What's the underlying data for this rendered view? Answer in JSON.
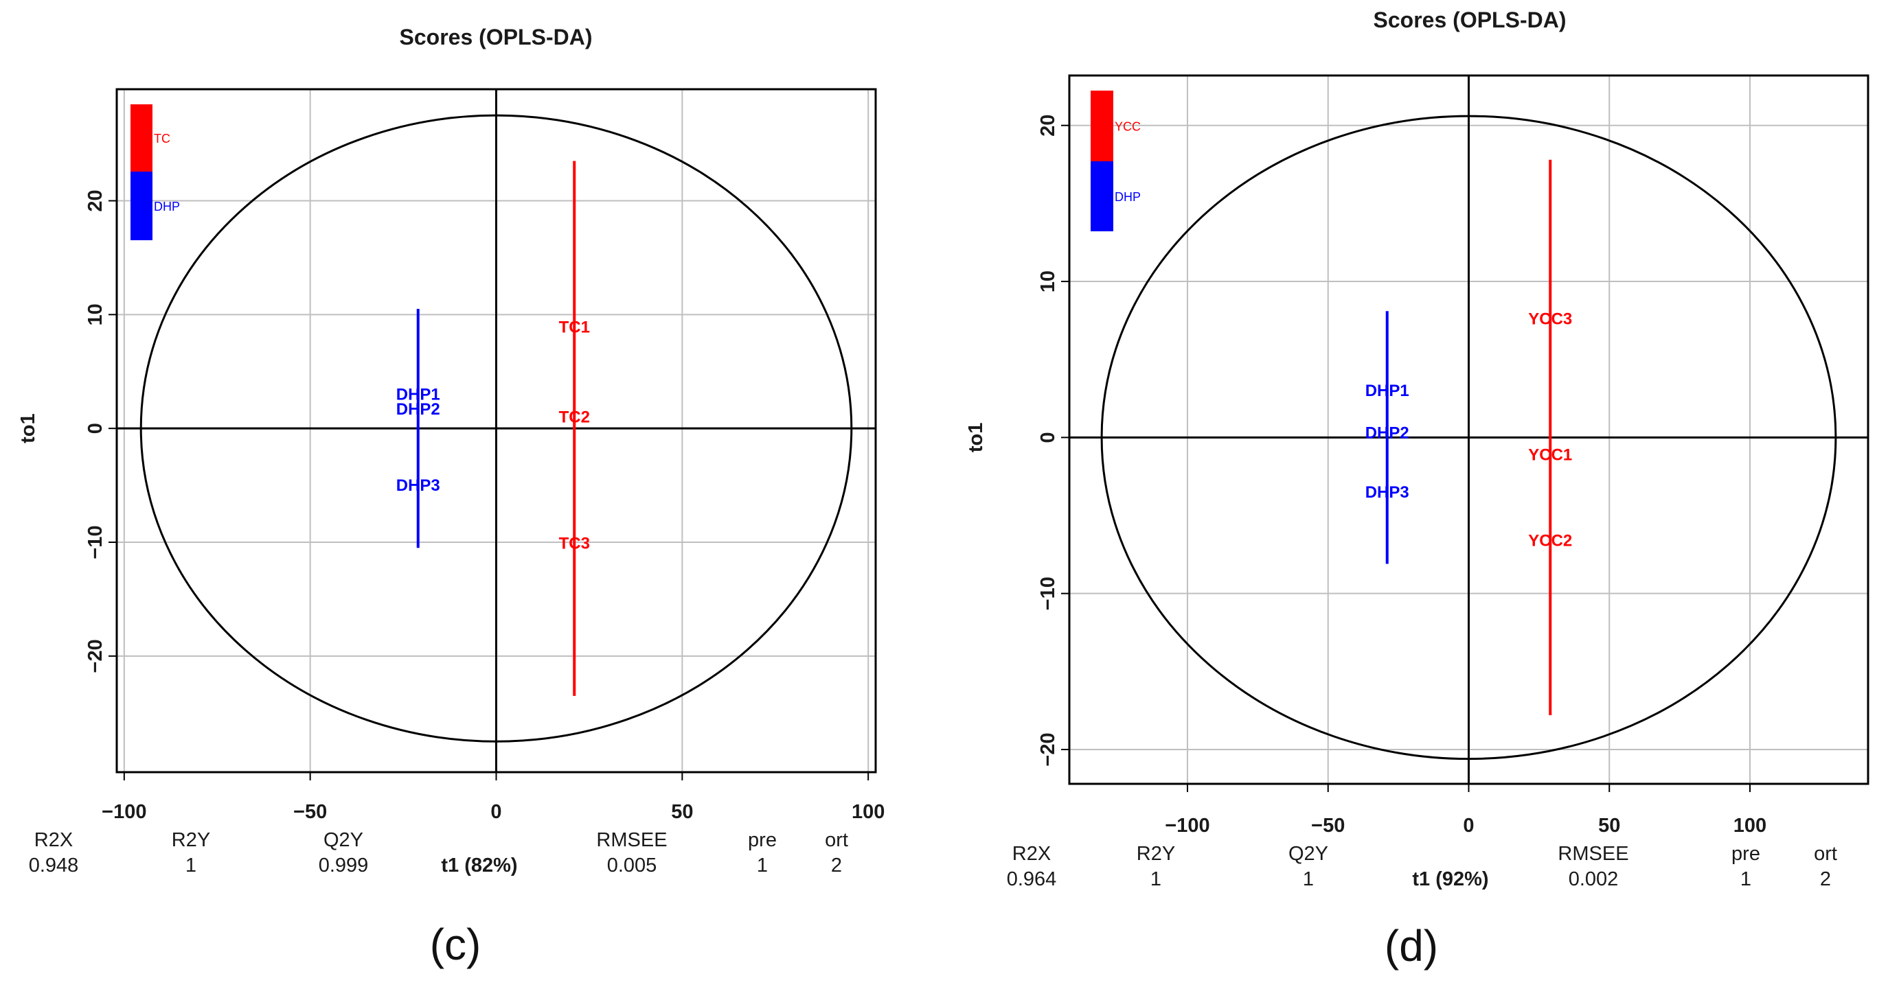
{
  "chart_data": [
    {
      "type": "scatter",
      "title": "Scores (OPLS-DA)",
      "xlabel": "t1 (82%)",
      "ylabel": "to1",
      "xlim": [
        -102,
        102
      ],
      "ylim": [
        -30.2,
        29.8
      ],
      "xticks": [
        -100,
        -50,
        0,
        50,
        100
      ],
      "xtick_labels": [
        "−100",
        "−50",
        "0",
        "50",
        "100"
      ],
      "yticks": [
        -20,
        -10,
        0,
        10,
        20
      ],
      "ytick_labels": [
        "−20",
        "−10",
        "0",
        "10",
        "20"
      ],
      "grid": true,
      "ellipse": {
        "rx": 95.5,
        "ry": 27.5
      },
      "legend": [
        {
          "label": "TC",
          "color": "#ff0000"
        },
        {
          "label": "DHP",
          "color": "#0000ff"
        }
      ],
      "series": [
        {
          "name": "DHP",
          "color": "#0000ff",
          "x": -21,
          "line": [
            -10.5,
            10.5
          ],
          "points": [
            {
              "label": "DHP1",
              "y": 3.0
            },
            {
              "label": "DHP2",
              "y": 1.7
            },
            {
              "label": "DHP3",
              "y": -5.0
            }
          ]
        },
        {
          "name": "TC",
          "color": "#ff0000",
          "x": 21,
          "line": [
            -23.5,
            23.5
          ],
          "points": [
            {
              "label": "TC1",
              "y": 8.9
            },
            {
              "label": "TC2",
              "y": 1.0
            },
            {
              "label": "TC3",
              "y": -10.1
            }
          ]
        }
      ],
      "metrics": {
        "names": [
          "R2X",
          "R2Y",
          "Q2Y",
          "RMSEE",
          "pre",
          "ort"
        ],
        "values": [
          "0.948",
          "1",
          "0.999",
          "0.005",
          "1",
          "2"
        ]
      },
      "caption": "(c)"
    },
    {
      "type": "scatter",
      "title": "Scores (OPLS-DA)",
      "xlabel": "t1 (92%)",
      "ylabel": "to1",
      "xlim": [
        -142,
        142
      ],
      "ylim": [
        -22.2,
        23.2
      ],
      "xticks": [
        -100,
        -50,
        0,
        50,
        100
      ],
      "xtick_labels": [
        "−100",
        "−50",
        "0",
        "50",
        "100"
      ],
      "yticks": [
        -20,
        -10,
        0,
        10,
        20
      ],
      "ytick_labels": [
        "−20",
        "−10",
        "0",
        "10",
        "20"
      ],
      "grid": true,
      "ellipse": {
        "rx": 130.5,
        "ry": 20.6
      },
      "legend": [
        {
          "label": "YCC",
          "color": "#ff0000"
        },
        {
          "label": "DHP",
          "color": "#0000ff"
        }
      ],
      "series": [
        {
          "name": "DHP",
          "color": "#0000ff",
          "x": -29,
          "line": [
            -8.1,
            8.1
          ],
          "points": [
            {
              "label": "DHP1",
              "y": 3.0
            },
            {
              "label": "DHP2",
              "y": 0.3
            },
            {
              "label": "DHP3",
              "y": -3.5
            }
          ]
        },
        {
          "name": "YCC",
          "color": "#ff0000",
          "x": 29,
          "line": [
            -17.8,
            17.8
          ],
          "points": [
            {
              "label": "YCC3",
              "y": 7.6
            },
            {
              "label": "YCC1",
              "y": -1.1
            },
            {
              "label": "YCC2",
              "y": -6.6
            }
          ]
        }
      ],
      "metrics": {
        "names": [
          "R2X",
          "R2Y",
          "Q2Y",
          "RMSEE",
          "pre",
          "ort"
        ],
        "values": [
          "0.964",
          "1",
          "1",
          "0.002",
          "1",
          "2"
        ]
      },
      "caption": "(d)"
    }
  ]
}
